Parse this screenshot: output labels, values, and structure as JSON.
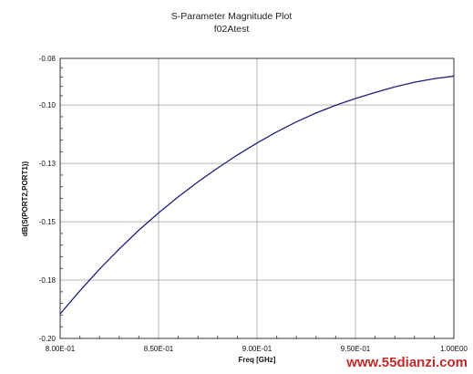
{
  "chart_data": {
    "type": "line",
    "title": "S-Parameter Magnitude Plot",
    "subtitle": "f02Atest",
    "xlabel": "Freq [GHz]",
    "ylabel": "dB(S(PORT2,PORT1))",
    "xlim": [
      0.8,
      1.0
    ],
    "ylim": [
      -0.2,
      -0.08
    ],
    "x_ticks": [
      {
        "value": 0.8,
        "label": "8.00E-01"
      },
      {
        "value": 0.85,
        "label": "8.50E-01"
      },
      {
        "value": 0.9,
        "label": "9.00E-01"
      },
      {
        "value": 0.95,
        "label": "9.50E-01"
      },
      {
        "value": 1.0,
        "label": "1.00E00"
      }
    ],
    "y_ticks": [
      {
        "value": -0.08,
        "label": "-0.08"
      },
      {
        "value": -0.1,
        "label": "-0.10"
      },
      {
        "value": -0.125,
        "label": "-0.13"
      },
      {
        "value": -0.15,
        "label": "-0.15"
      },
      {
        "value": -0.175,
        "label": "-0.18"
      },
      {
        "value": -0.2,
        "label": "-0.20"
      }
    ],
    "grid": true,
    "series": [
      {
        "color": "#1f1f7a",
        "x": [
          0.8,
          0.81,
          0.82,
          0.83,
          0.84,
          0.85,
          0.86,
          0.87,
          0.88,
          0.89,
          0.9,
          0.91,
          0.92,
          0.93,
          0.94,
          0.95,
          0.96,
          0.97,
          0.98,
          0.99,
          1.0
        ],
        "y": [
          -0.1895,
          -0.1796,
          -0.1703,
          -0.1617,
          -0.1536,
          -0.1462,
          -0.1393,
          -0.1329,
          -0.127,
          -0.1214,
          -0.1163,
          -0.1115,
          -0.1072,
          -0.1034,
          -0.1001,
          -0.0972,
          -0.0946,
          -0.0922,
          -0.0902,
          -0.0887,
          -0.0876
        ]
      }
    ]
  },
  "watermark": "www.55dianzi.com"
}
